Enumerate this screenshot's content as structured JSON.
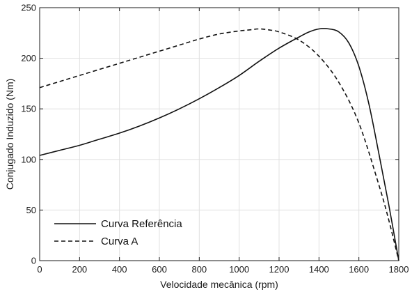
{
  "chart_data": {
    "type": "line",
    "title": "",
    "xlabel": "Velocidade mecânica (rpm)",
    "ylabel": "Conjugado Induzido (Nm)",
    "xlim": [
      0,
      1800
    ],
    "ylim": [
      0,
      250
    ],
    "x_ticks": [
      0,
      200,
      400,
      600,
      800,
      1000,
      1200,
      1400,
      1600,
      1800
    ],
    "y_ticks": [
      0,
      50,
      100,
      150,
      200,
      250
    ],
    "grid": true,
    "legend_position": "bottom-left",
    "series": [
      {
        "name": "Curva Referência",
        "style": "solid",
        "color": "#111111",
        "x": [
          0,
          100,
          200,
          300,
          400,
          500,
          600,
          700,
          800,
          900,
          1000,
          1100,
          1200,
          1300,
          1350,
          1400,
          1450,
          1500,
          1550,
          1600,
          1650,
          1700,
          1750,
          1800
        ],
        "y": [
          104,
          109,
          114,
          120,
          126,
          133,
          141,
          150,
          160,
          171,
          183,
          197,
          210,
          221,
          226,
          229,
          229,
          226,
          215,
          192,
          155,
          106,
          55,
          0
        ]
      },
      {
        "name": "Curva A",
        "style": "dashed",
        "color": "#111111",
        "x": [
          0,
          100,
          200,
          300,
          400,
          500,
          600,
          700,
          800,
          900,
          1000,
          1050,
          1100,
          1150,
          1200,
          1300,
          1400,
          1500,
          1600,
          1700,
          1750,
          1800
        ],
        "y": [
          171,
          177,
          183,
          189,
          195,
          201,
          207,
          213,
          219,
          224,
          227,
          228,
          229,
          228,
          226,
          218,
          202,
          176,
          136,
          75,
          40,
          0
        ]
      }
    ]
  }
}
